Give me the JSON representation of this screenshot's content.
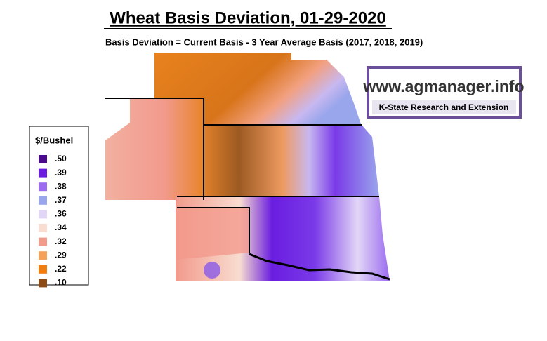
{
  "title": "Wheat Basis Deviation, 01-29-2020",
  "subtitle": "Basis Deviation = Current Basis - 3 Year Average Basis (2017, 2018, 2019)",
  "legend": {
    "title": "$/Bushel",
    "items": [
      {
        "label": ".50",
        "color": "#4a0a8c"
      },
      {
        "label": ".39",
        "color": "#6a1de0"
      },
      {
        "label": ".38",
        "color": "#9b6cf0"
      },
      {
        "label": ".37",
        "color": "#9aa6ec"
      },
      {
        "label": ".36",
        "color": "#e2d6f6"
      },
      {
        "label": ".34",
        "color": "#f8ddd0"
      },
      {
        "label": ".32",
        "color": "#f29a8c"
      },
      {
        "label": ".29",
        "color": "#f4a25a"
      },
      {
        "label": ".22",
        "color": "#f07d10"
      },
      {
        "label": ".10",
        "color": "#8c4a14"
      }
    ]
  },
  "logo": {
    "url": "www.agmanager.info",
    "org": "K-State Research and Extension"
  }
}
